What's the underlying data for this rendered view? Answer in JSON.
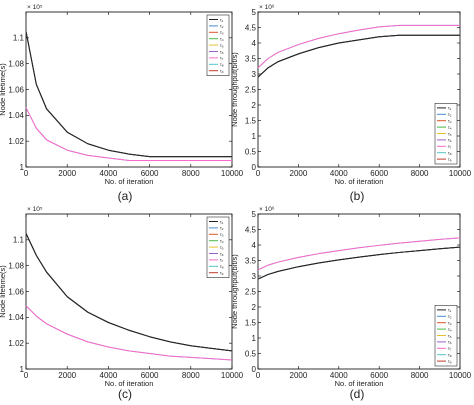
{
  "panels": [
    {
      "caption": "(a)",
      "xlabel": "No. of iteration",
      "ylabel": "Node lifetime(s)",
      "multiplier": "× 10⁵",
      "xlim": [
        0,
        10000
      ],
      "ylim": [
        1.0,
        1.12
      ],
      "xticks": [
        "0",
        "2000",
        "4000",
        "6000",
        "8000",
        "10000"
      ],
      "yticks": [
        "1",
        "1.02",
        "1.04",
        "1.06",
        "1.08",
        "1.1"
      ],
      "legend": [
        "τ₁",
        "τ₂",
        "τ₃",
        "τ₄",
        "τ₅",
        "τ₆",
        "τ₇",
        "τ₈",
        "τ₉"
      ]
    },
    {
      "caption": "(b)",
      "xlabel": "No. of iteration",
      "ylabel": "Node throughput(bit/s)",
      "multiplier": "× 10⁶",
      "xlim": [
        0,
        10000
      ],
      "ylim": [
        0,
        5
      ],
      "xticks": [
        "0",
        "2000",
        "4000",
        "6000",
        "8000",
        "10000"
      ],
      "yticks": [
        "0",
        "0.5",
        "1",
        "1.5",
        "2",
        "2.5",
        "3",
        "3.5",
        "4",
        "4.5",
        "5"
      ],
      "legend": [
        "τ₁",
        "τ₂",
        "τ₃",
        "τ₄",
        "τ₅",
        "τ₆",
        "τ₇",
        "τ₈",
        "τ₉"
      ]
    },
    {
      "caption": "(c)",
      "xlabel": "No. of iteration",
      "ylabel": "Node lifetime(s)",
      "multiplier": "× 10⁵",
      "xlim": [
        0,
        10000
      ],
      "ylim": [
        1.0,
        1.12
      ],
      "xticks": [
        "0",
        "2000",
        "4000",
        "6000",
        "8000",
        "10000"
      ],
      "yticks": [
        "1",
        "1.02",
        "1.04",
        "1.06",
        "1.08",
        "1.1"
      ],
      "legend": [
        "τ₁",
        "τ₂",
        "τ₃",
        "τ₄",
        "τ₅",
        "τ₆",
        "τ₇",
        "τ₈",
        "τ₉"
      ]
    },
    {
      "caption": "(d)",
      "xlabel": "No. of iteration",
      "ylabel": "Node throughput(bit/s)",
      "multiplier": "× 10⁶",
      "xlim": [
        0,
        10000
      ],
      "ylim": [
        0,
        5
      ],
      "xticks": [
        "0",
        "2000",
        "4000",
        "6000",
        "8000",
        "10000"
      ],
      "yticks": [
        "0",
        "0.5",
        "1",
        "1.5",
        "2",
        "2.5",
        "3",
        "3.5",
        "4",
        "4.5",
        "5"
      ],
      "legend": [
        "τ₁",
        "τ₂",
        "τ₃",
        "τ₄",
        "τ₅",
        "τ₆",
        "τ₇",
        "τ₈",
        "τ₉"
      ]
    }
  ],
  "colors": [
    "#222222",
    "#4a8bd0",
    "#e0552b",
    "#49b84a",
    "#e5c230",
    "#9a62c8",
    "#ff66cc",
    "#55c5c5",
    "#c03a2b"
  ],
  "chart_data": [
    {
      "type": "line",
      "xlim": [
        0,
        10000
      ],
      "ylim": [
        1.0,
        1.12
      ],
      "grid": false,
      "legend_position": "top-right",
      "x": [
        0,
        500,
        1000,
        2000,
        3000,
        4000,
        5000,
        6000,
        7000,
        8000,
        9000,
        10000
      ],
      "series": [
        {
          "name": "τ₁",
          "values": [
            1.105,
            1.064,
            1.045,
            1.027,
            1.018,
            1.013,
            1.01,
            1.008,
            1.008,
            1.008,
            1.008,
            1.008
          ]
        },
        {
          "name": "τ₂",
          "values": [
            1.105,
            1.064,
            1.045,
            1.027,
            1.018,
            1.013,
            1.01,
            1.008,
            1.008,
            1.008,
            1.008,
            1.008
          ]
        },
        {
          "name": "τ₃",
          "values": [
            1.105,
            1.064,
            1.045,
            1.027,
            1.018,
            1.013,
            1.01,
            1.008,
            1.008,
            1.008,
            1.008,
            1.008
          ]
        },
        {
          "name": "τ₄",
          "values": [
            1.105,
            1.064,
            1.045,
            1.027,
            1.018,
            1.013,
            1.01,
            1.008,
            1.008,
            1.008,
            1.008,
            1.008
          ]
        },
        {
          "name": "τ₅",
          "values": [
            1.105,
            1.064,
            1.045,
            1.027,
            1.018,
            1.013,
            1.01,
            1.008,
            1.008,
            1.008,
            1.008,
            1.008
          ]
        },
        {
          "name": "τ₆",
          "values": [
            1.105,
            1.064,
            1.045,
            1.027,
            1.018,
            1.013,
            1.01,
            1.008,
            1.008,
            1.008,
            1.008,
            1.008
          ]
        },
        {
          "name": "τ₇",
          "values": [
            1.046,
            1.03,
            1.021,
            1.013,
            1.009,
            1.007,
            1.005,
            1.005,
            1.005,
            1.005,
            1.005,
            1.005
          ]
        },
        {
          "name": "τ₈",
          "values": [
            1.046,
            1.03,
            1.021,
            1.013,
            1.009,
            1.007,
            1.005,
            1.005,
            1.005,
            1.005,
            1.005,
            1.005
          ]
        },
        {
          "name": "τ₉",
          "values": [
            1.105,
            1.064,
            1.045,
            1.027,
            1.018,
            1.013,
            1.01,
            1.008,
            1.008,
            1.008,
            1.008,
            1.008
          ]
        }
      ]
    },
    {
      "type": "line",
      "xlim": [
        0,
        10000
      ],
      "ylim": [
        0,
        5
      ],
      "grid": false,
      "legend_position": "bottom-right",
      "x": [
        0,
        500,
        1000,
        2000,
        3000,
        4000,
        5000,
        6000,
        7000,
        8000,
        9000,
        10000
      ],
      "series": [
        {
          "name": "τ₁",
          "values": [
            2.9,
            3.2,
            3.4,
            3.65,
            3.85,
            4.0,
            4.1,
            4.2,
            4.25,
            4.25,
            4.25,
            4.25
          ]
        },
        {
          "name": "τ₂",
          "values": [
            2.9,
            3.2,
            3.4,
            3.65,
            3.85,
            4.0,
            4.1,
            4.2,
            4.25,
            4.25,
            4.25,
            4.25
          ]
        },
        {
          "name": "τ₃",
          "values": [
            2.9,
            3.2,
            3.4,
            3.65,
            3.85,
            4.0,
            4.1,
            4.2,
            4.25,
            4.25,
            4.25,
            4.25
          ]
        },
        {
          "name": "τ₄",
          "values": [
            2.9,
            3.2,
            3.4,
            3.65,
            3.85,
            4.0,
            4.1,
            4.2,
            4.25,
            4.25,
            4.25,
            4.25
          ]
        },
        {
          "name": "τ₅",
          "values": [
            2.9,
            3.2,
            3.4,
            3.65,
            3.85,
            4.0,
            4.1,
            4.2,
            4.25,
            4.25,
            4.25,
            4.25
          ]
        },
        {
          "name": "τ₆",
          "values": [
            2.9,
            3.2,
            3.4,
            3.65,
            3.85,
            4.0,
            4.1,
            4.2,
            4.25,
            4.25,
            4.25,
            4.25
          ]
        },
        {
          "name": "τ₇",
          "values": [
            3.2,
            3.5,
            3.7,
            3.95,
            4.15,
            4.3,
            4.42,
            4.52,
            4.57,
            4.57,
            4.57,
            4.57
          ]
        },
        {
          "name": "τ₈",
          "values": [
            3.2,
            3.5,
            3.7,
            3.95,
            4.15,
            4.3,
            4.42,
            4.52,
            4.57,
            4.57,
            4.57,
            4.57
          ]
        },
        {
          "name": "τ₉",
          "values": [
            2.9,
            3.2,
            3.4,
            3.65,
            3.85,
            4.0,
            4.1,
            4.2,
            4.25,
            4.25,
            4.25,
            4.25
          ]
        }
      ]
    },
    {
      "type": "line",
      "xlim": [
        0,
        10000
      ],
      "ylim": [
        1.0,
        1.12
      ],
      "grid": false,
      "legend_position": "top-right",
      "x": [
        0,
        500,
        1000,
        2000,
        3000,
        4000,
        5000,
        6000,
        7000,
        8000,
        9000,
        10000
      ],
      "series": [
        {
          "name": "τ₁",
          "values": [
            1.105,
            1.088,
            1.075,
            1.056,
            1.044,
            1.036,
            1.03,
            1.025,
            1.021,
            1.018,
            1.016,
            1.014
          ]
        },
        {
          "name": "τ₂",
          "values": [
            1.105,
            1.088,
            1.075,
            1.056,
            1.044,
            1.036,
            1.03,
            1.025,
            1.021,
            1.018,
            1.016,
            1.014
          ]
        },
        {
          "name": "τ₃",
          "values": [
            1.105,
            1.088,
            1.075,
            1.056,
            1.044,
            1.036,
            1.03,
            1.025,
            1.021,
            1.018,
            1.016,
            1.014
          ]
        },
        {
          "name": "τ₄",
          "values": [
            1.105,
            1.088,
            1.075,
            1.056,
            1.044,
            1.036,
            1.03,
            1.025,
            1.021,
            1.018,
            1.016,
            1.014
          ]
        },
        {
          "name": "τ₅",
          "values": [
            1.105,
            1.088,
            1.075,
            1.056,
            1.044,
            1.036,
            1.03,
            1.025,
            1.021,
            1.018,
            1.016,
            1.014
          ]
        },
        {
          "name": "τ₆",
          "values": [
            1.105,
            1.088,
            1.075,
            1.056,
            1.044,
            1.036,
            1.03,
            1.025,
            1.021,
            1.018,
            1.016,
            1.014
          ]
        },
        {
          "name": "τ₇",
          "values": [
            1.049,
            1.041,
            1.035,
            1.027,
            1.021,
            1.017,
            1.014,
            1.012,
            1.01,
            1.009,
            1.008,
            1.007
          ]
        },
        {
          "name": "τ₈",
          "values": [
            1.049,
            1.041,
            1.035,
            1.027,
            1.021,
            1.017,
            1.014,
            1.012,
            1.01,
            1.009,
            1.008,
            1.007
          ]
        },
        {
          "name": "τ₉",
          "values": [
            1.105,
            1.088,
            1.075,
            1.056,
            1.044,
            1.036,
            1.03,
            1.025,
            1.021,
            1.018,
            1.016,
            1.014
          ]
        }
      ]
    },
    {
      "type": "line",
      "xlim": [
        0,
        10000
      ],
      "ylim": [
        0,
        5
      ],
      "grid": false,
      "legend_position": "bottom-right",
      "x": [
        0,
        500,
        1000,
        2000,
        3000,
        4000,
        5000,
        6000,
        7000,
        8000,
        9000,
        10000
      ],
      "series": [
        {
          "name": "τ₁",
          "values": [
            2.9,
            3.05,
            3.15,
            3.3,
            3.42,
            3.52,
            3.61,
            3.69,
            3.76,
            3.82,
            3.88,
            3.93
          ]
        },
        {
          "name": "τ₂",
          "values": [
            2.9,
            3.05,
            3.15,
            3.3,
            3.42,
            3.52,
            3.61,
            3.69,
            3.76,
            3.82,
            3.88,
            3.93
          ]
        },
        {
          "name": "τ₃",
          "values": [
            2.9,
            3.05,
            3.15,
            3.3,
            3.42,
            3.52,
            3.61,
            3.69,
            3.76,
            3.82,
            3.88,
            3.93
          ]
        },
        {
          "name": "τ₄",
          "values": [
            2.9,
            3.05,
            3.15,
            3.3,
            3.42,
            3.52,
            3.61,
            3.69,
            3.76,
            3.82,
            3.88,
            3.93
          ]
        },
        {
          "name": "τ₅",
          "values": [
            2.9,
            3.05,
            3.15,
            3.3,
            3.42,
            3.52,
            3.61,
            3.69,
            3.76,
            3.82,
            3.88,
            3.93
          ]
        },
        {
          "name": "τ₆",
          "values": [
            2.9,
            3.05,
            3.15,
            3.3,
            3.42,
            3.52,
            3.61,
            3.69,
            3.76,
            3.82,
            3.88,
            3.93
          ]
        },
        {
          "name": "τ₇",
          "values": [
            3.2,
            3.35,
            3.45,
            3.6,
            3.72,
            3.82,
            3.91,
            3.99,
            4.06,
            4.12,
            4.18,
            4.23
          ]
        },
        {
          "name": "τ₈",
          "values": [
            3.2,
            3.35,
            3.45,
            3.6,
            3.72,
            3.82,
            3.91,
            3.99,
            4.06,
            4.12,
            4.18,
            4.23
          ]
        },
        {
          "name": "τ₉",
          "values": [
            2.9,
            3.05,
            3.15,
            3.3,
            3.42,
            3.52,
            3.61,
            3.69,
            3.76,
            3.82,
            3.88,
            3.93
          ]
        }
      ]
    }
  ]
}
